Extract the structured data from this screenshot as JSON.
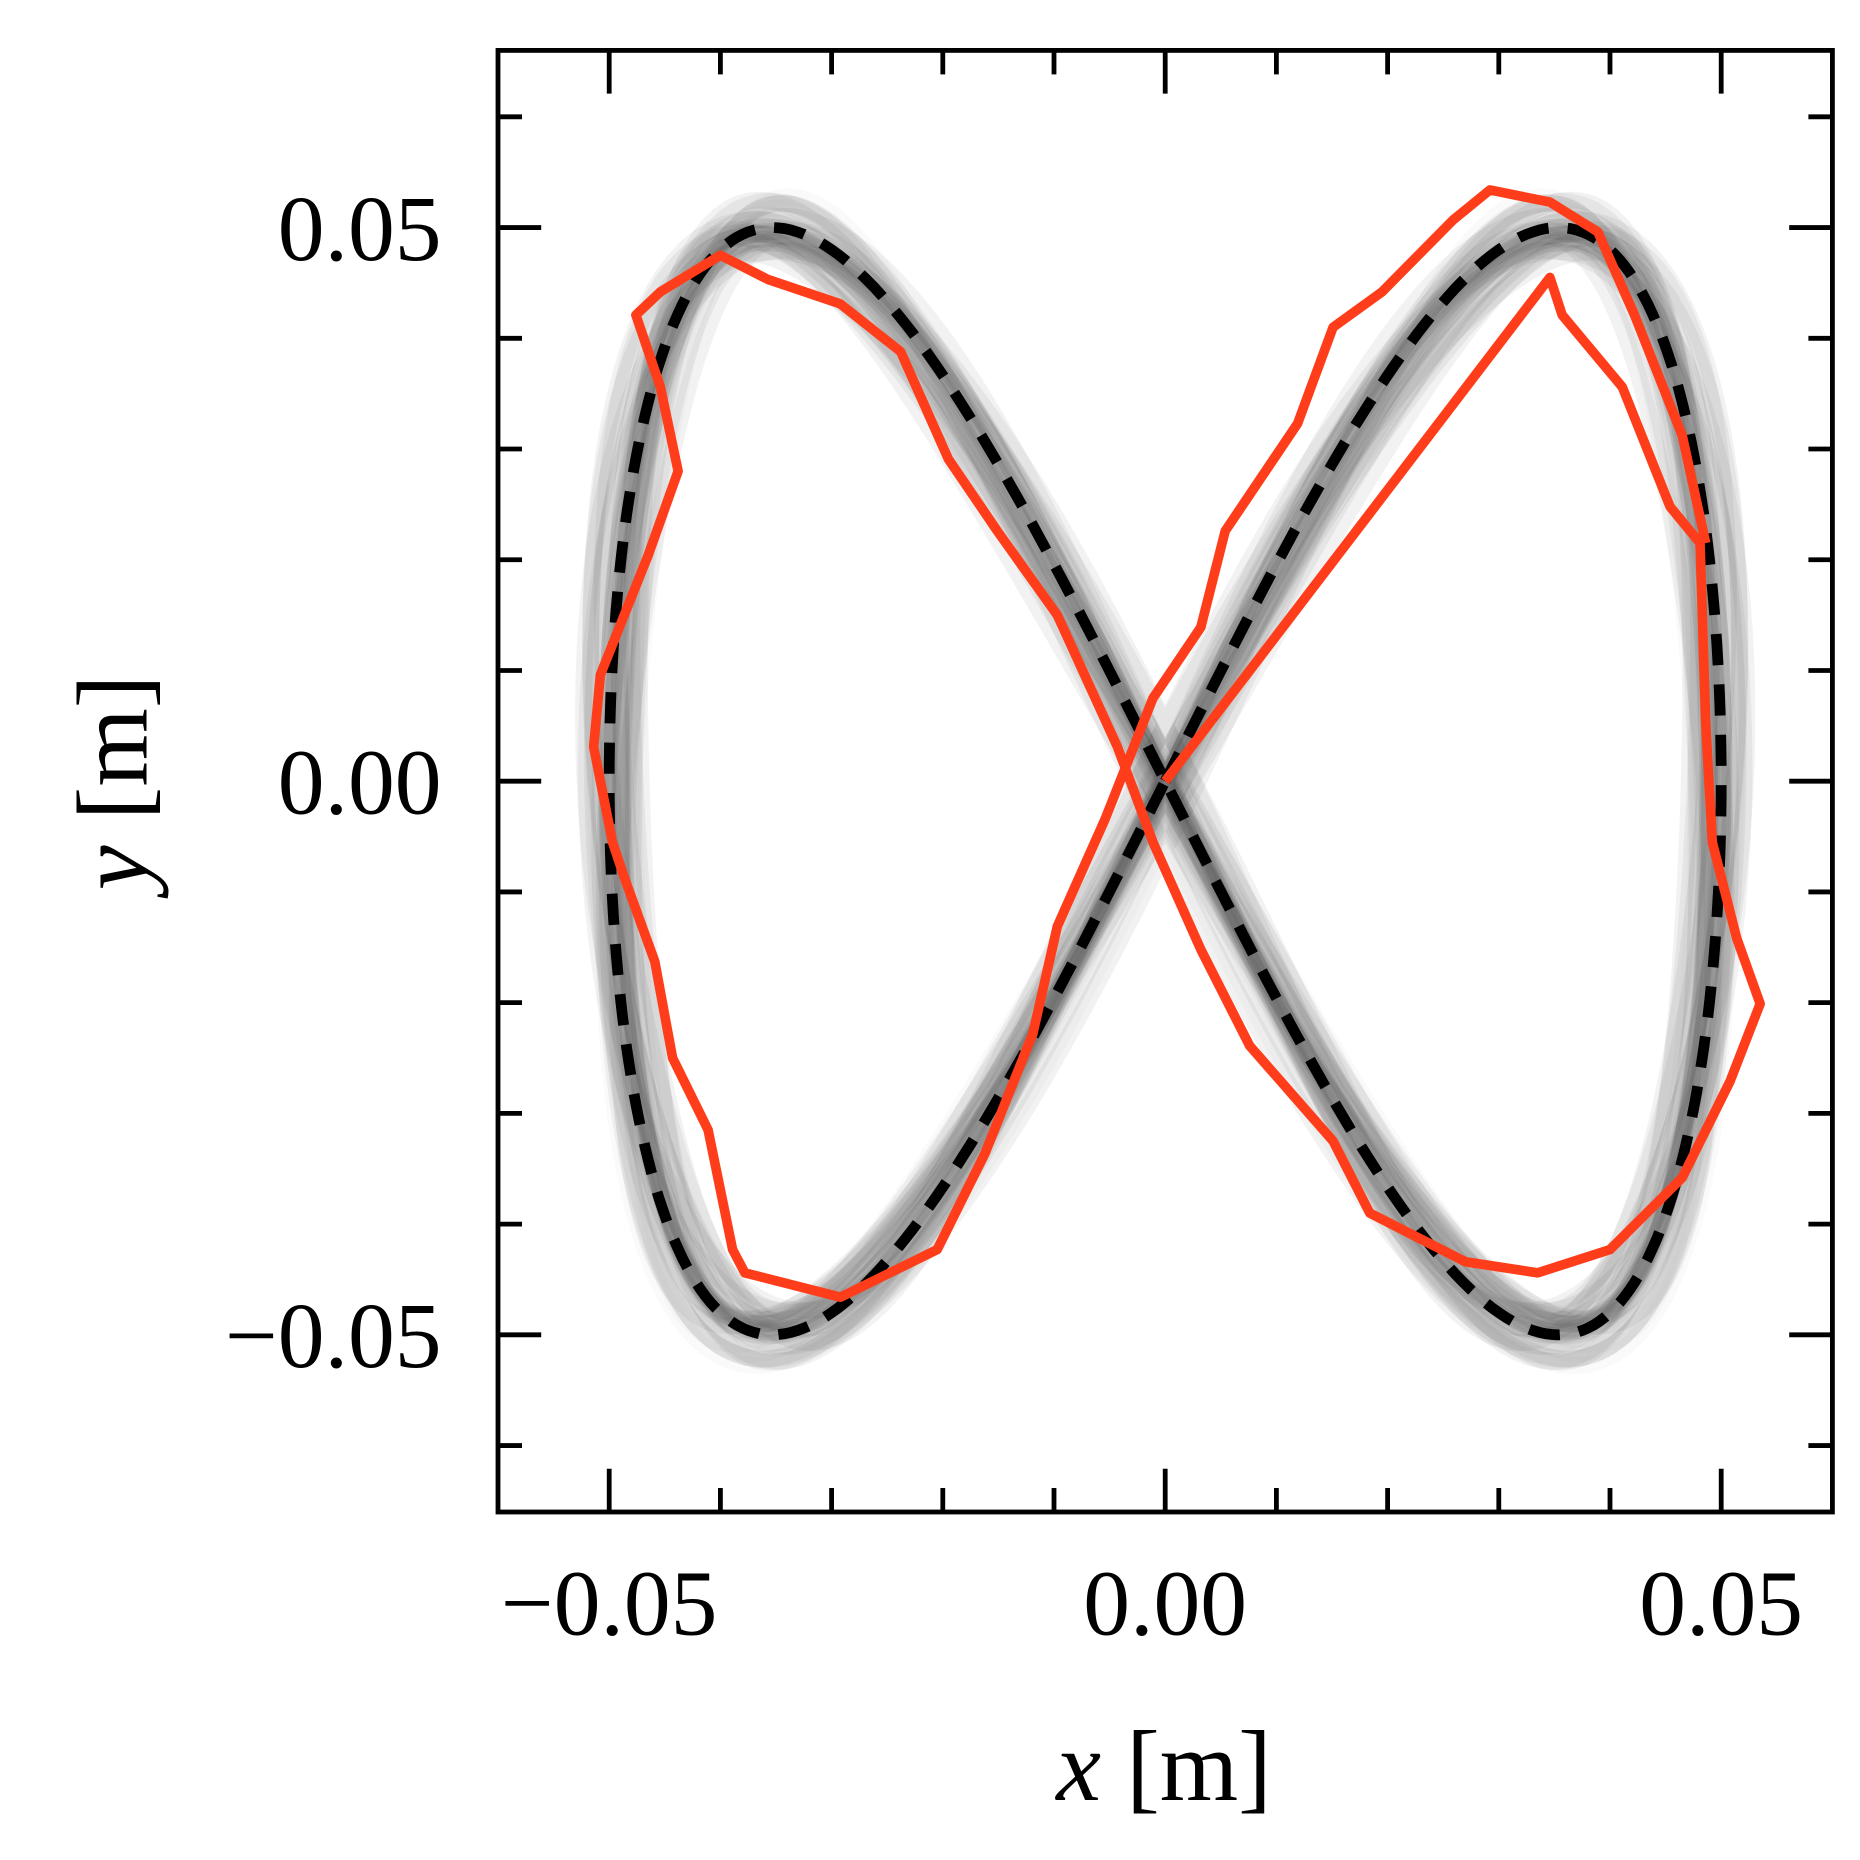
{
  "chart_data": {
    "type": "line",
    "title": "",
    "xlabel": {
      "var": "x",
      "unit": " [m]"
    },
    "ylabel": {
      "var": "y",
      "unit": " [m]"
    },
    "xlim": [
      -0.06,
      0.06
    ],
    "ylim": [
      -0.066,
      0.066
    ],
    "xticks": [
      -0.05,
      0.0,
      0.05
    ],
    "xtick_labels": [
      "−0.05",
      "0.00",
      "0.05"
    ],
    "yticks": [
      -0.05,
      0.0,
      0.05
    ],
    "ytick_labels": [
      "−0.05",
      "0.00",
      "0.05"
    ],
    "minor_tick_step": 0.01,
    "grid": false,
    "legend": "none",
    "reference": {
      "style": "dashed",
      "color": "#000000",
      "shape": "figure-eight x=A sin(t), y=A sin(2t)",
      "amplitude": 0.05
    },
    "samples": {
      "color": "#808080",
      "opacity": "faint"
    },
    "trajectory": {
      "color": "#ff3d1a",
      "points": [
        [
          0,
          0
        ],
        [
          0.0346,
          0.0455
        ],
        [
          0.0357,
          0.0421
        ],
        [
          0.0411,
          0.0356
        ],
        [
          0.0454,
          0.0248
        ],
        [
          0.0481,
          0.0215
        ],
        [
          0.0486,
          0.0053
        ],
        [
          0.0492,
          -0.0055
        ],
        [
          0.0514,
          -0.0142
        ],
        [
          0.0535,
          -0.0201
        ],
        [
          0.0508,
          -0.0271
        ],
        [
          0.0465,
          -0.0358
        ],
        [
          0.04,
          -0.0423
        ],
        [
          0.0335,
          -0.0444
        ],
        [
          0.027,
          -0.0434
        ],
        [
          0.0184,
          -0.039
        ],
        [
          0.0151,
          -0.0325
        ],
        [
          0.0076,
          -0.0239
        ],
        [
          0.0032,
          -0.0152
        ],
        [
          -0.0011,
          -0.0055
        ],
        [
          -0.0043,
          0.0031
        ],
        [
          -0.0097,
          0.015
        ],
        [
          -0.0151,
          0.0226
        ],
        [
          -0.0195,
          0.0291
        ],
        [
          -0.0238,
          0.0388
        ],
        [
          -0.0292,
          0.0431
        ],
        [
          -0.0357,
          0.0453
        ],
        [
          -0.04,
          0.0475
        ],
        [
          -0.0454,
          0.0442
        ],
        [
          -0.0476,
          0.0421
        ],
        [
          -0.0454,
          0.0356
        ],
        [
          -0.0438,
          0.028
        ],
        [
          -0.0465,
          0.0204
        ],
        [
          -0.0508,
          0.0096
        ],
        [
          -0.0514,
          0.0031
        ],
        [
          -0.0497,
          -0.0055
        ],
        [
          -0.0486,
          -0.0088
        ],
        [
          -0.0459,
          -0.0163
        ],
        [
          -0.0443,
          -0.025
        ],
        [
          -0.0411,
          -0.0315
        ],
        [
          -0.0389,
          -0.0423
        ],
        [
          -0.0378,
          -0.0444
        ],
        [
          -0.0292,
          -0.0466
        ],
        [
          -0.0205,
          -0.0423
        ],
        [
          -0.0162,
          -0.0336
        ],
        [
          -0.0119,
          -0.0228
        ],
        [
          -0.0097,
          -0.0131
        ],
        [
          -0.0054,
          -0.0034
        ],
        [
          -0.0011,
          0.0075
        ],
        [
          0.0032,
          0.0139
        ],
        [
          0.0054,
          0.0226
        ],
        [
          0.0119,
          0.0323
        ],
        [
          0.0151,
          0.041
        ],
        [
          0.0195,
          0.0442
        ],
        [
          0.0259,
          0.0507
        ],
        [
          0.0292,
          0.0534
        ],
        [
          0.0346,
          0.0523
        ],
        [
          0.0389,
          0.0496
        ],
        [
          0.0422,
          0.0421
        ],
        [
          0.0465,
          0.0312
        ],
        [
          0.0486,
          0.0215
        ]
      ]
    }
  }
}
